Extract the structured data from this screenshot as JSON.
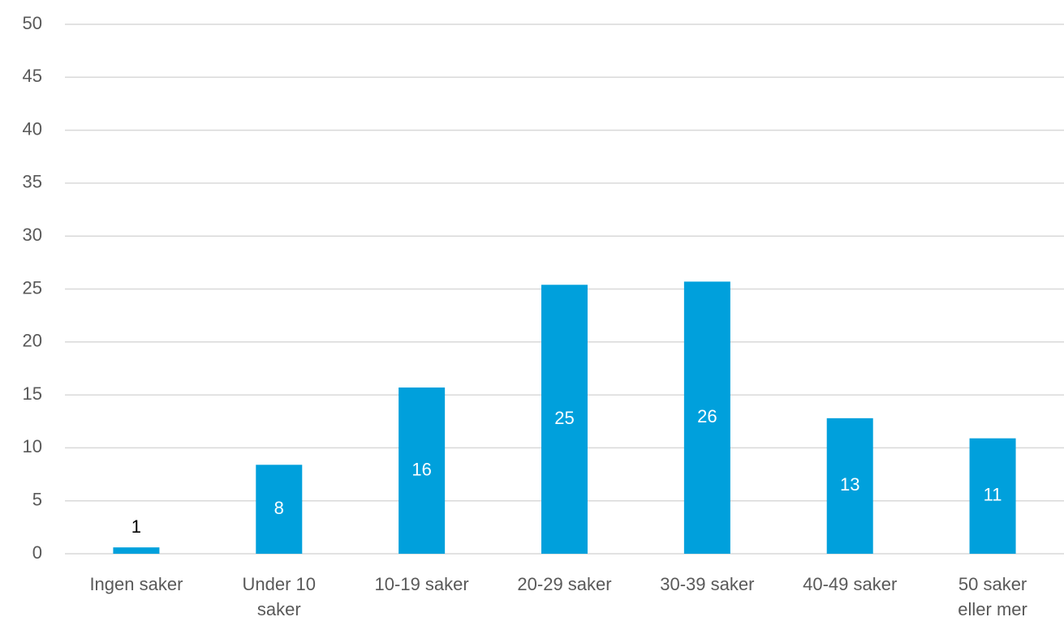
{
  "chart_data": {
    "type": "bar",
    "categories": [
      "Ingen saker",
      "Under 10 saker",
      "10-19 saker",
      "20-29 saker",
      "30-39 saker",
      "40-49 saker",
      "50 saker eller mer"
    ],
    "values": [
      0.6,
      8.4,
      15.7,
      25.4,
      25.7,
      12.8,
      10.9
    ],
    "value_labels": [
      "1",
      "8",
      "16",
      "25",
      "26",
      "13",
      "11"
    ],
    "color": "#00a0dc",
    "ylim": [
      0,
      50
    ],
    "yticks": [
      0,
      5,
      10,
      15,
      20,
      25,
      30,
      35,
      40,
      45,
      50
    ],
    "grid": true
  }
}
